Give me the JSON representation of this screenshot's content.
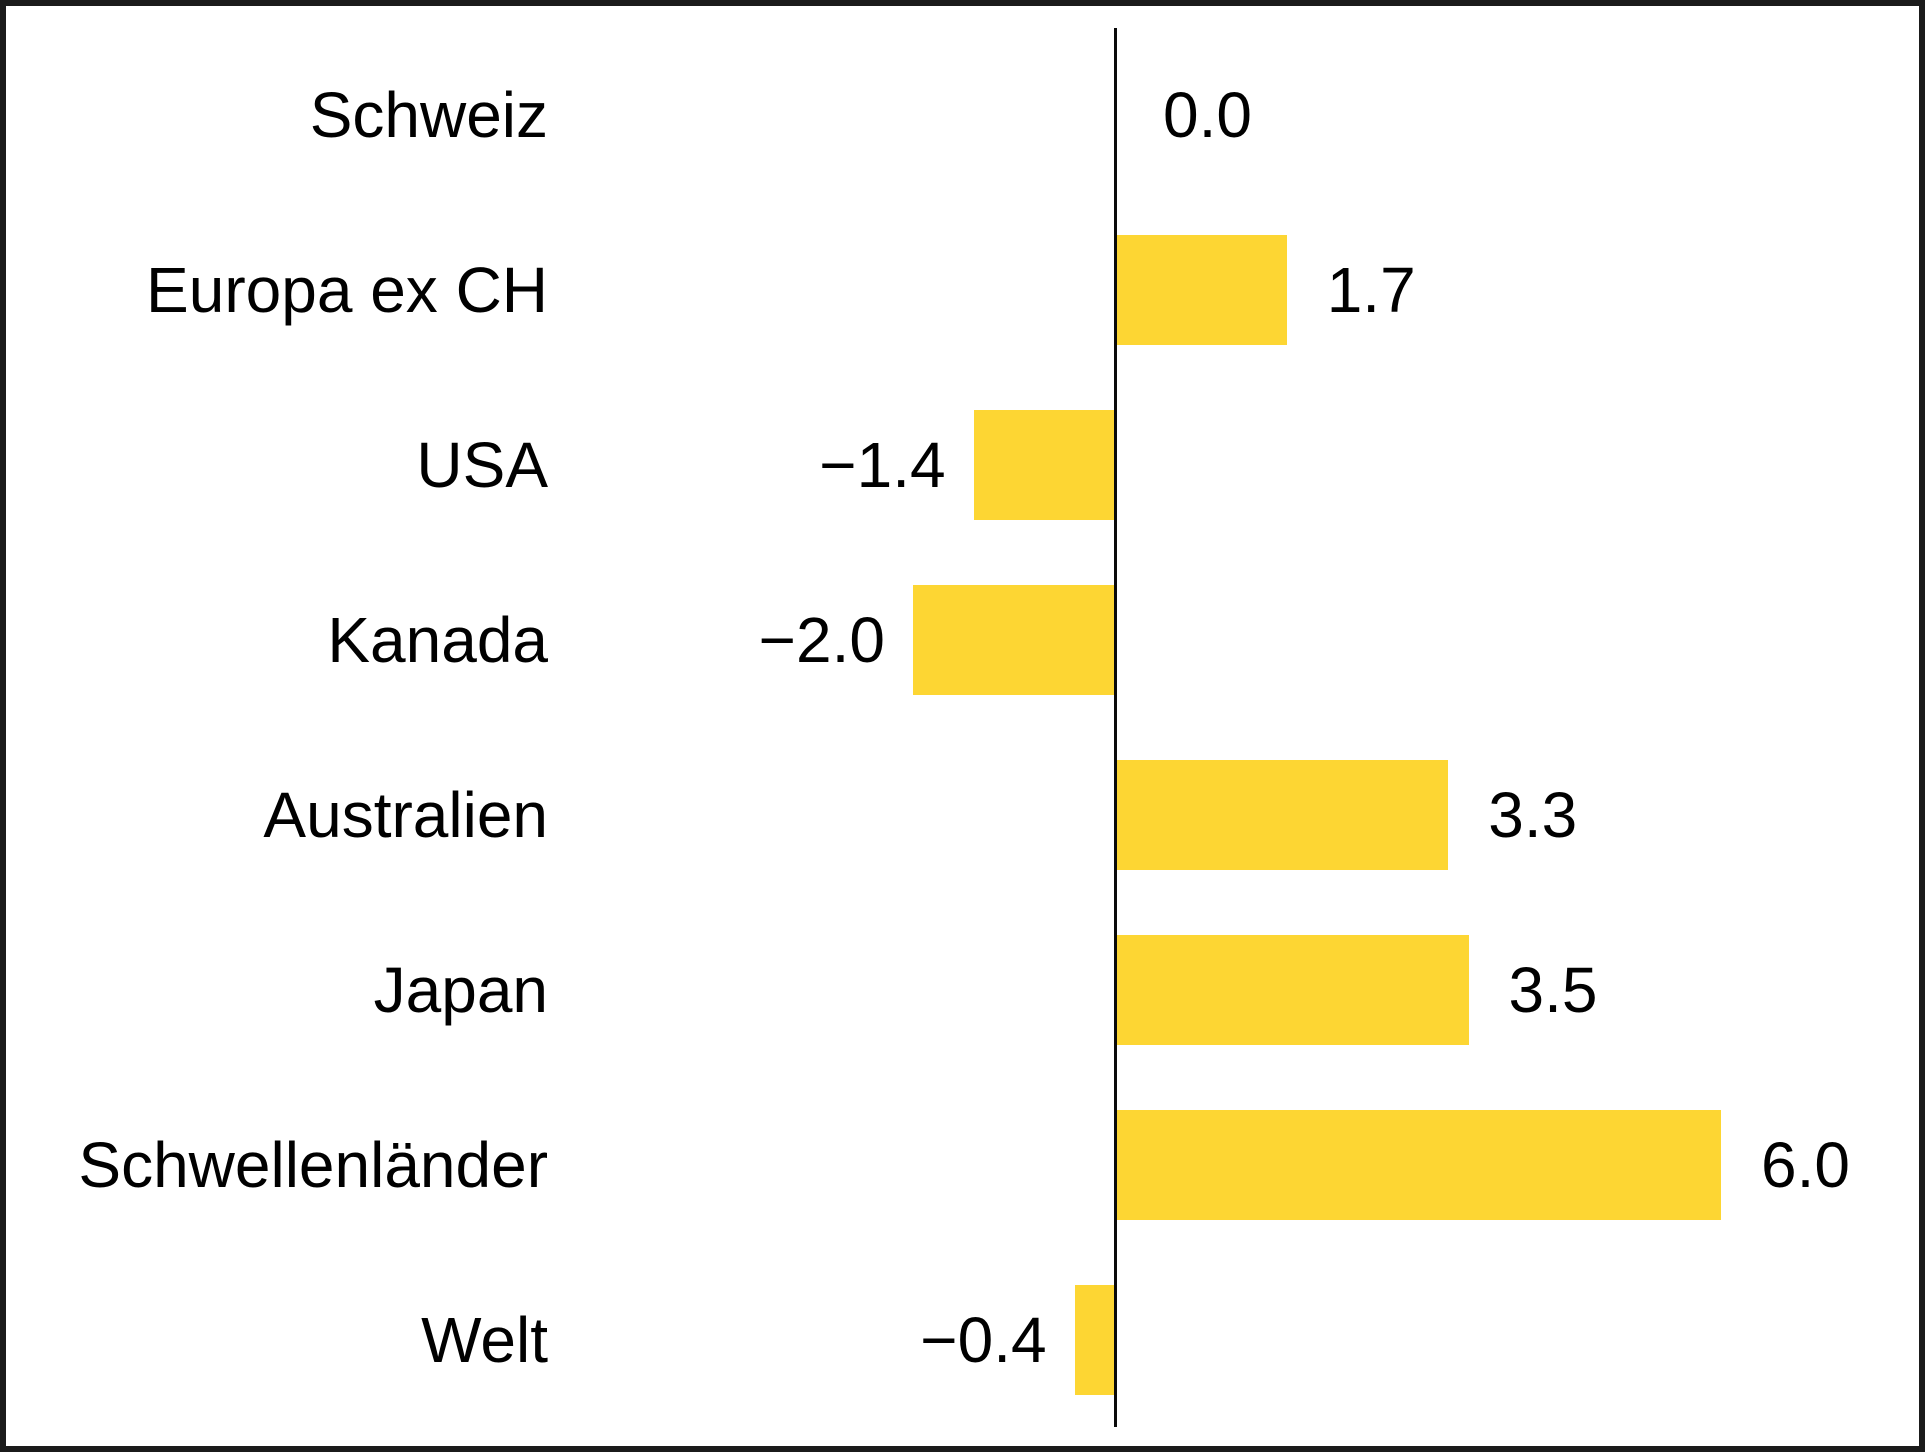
{
  "chart_data": {
    "type": "bar",
    "orientation": "horizontal",
    "title": "",
    "xlabel": "",
    "ylabel": "",
    "categories": [
      "Schweiz",
      "Europa ex CH",
      "USA",
      "Kanada",
      "Australien",
      "Japan",
      "Schwellenländer",
      "Welt"
    ],
    "values": [
      0.0,
      1.7,
      -1.4,
      -2.0,
      3.3,
      3.5,
      6.0,
      -0.4
    ],
    "value_labels": [
      "0.0",
      "1.7",
      "−1.4",
      "−2.0",
      "3.3",
      "3.5",
      "6.0",
      "−0.4"
    ],
    "xlim": [
      -2.0,
      6.0
    ],
    "grid": false,
    "legend": null,
    "data_labels": true,
    "bar_color": "#FDD633",
    "axis_color": "#0A0A0A",
    "text_color": "#000000",
    "background_color": "#FFFFFF",
    "border_color": "#1B1B1B"
  }
}
